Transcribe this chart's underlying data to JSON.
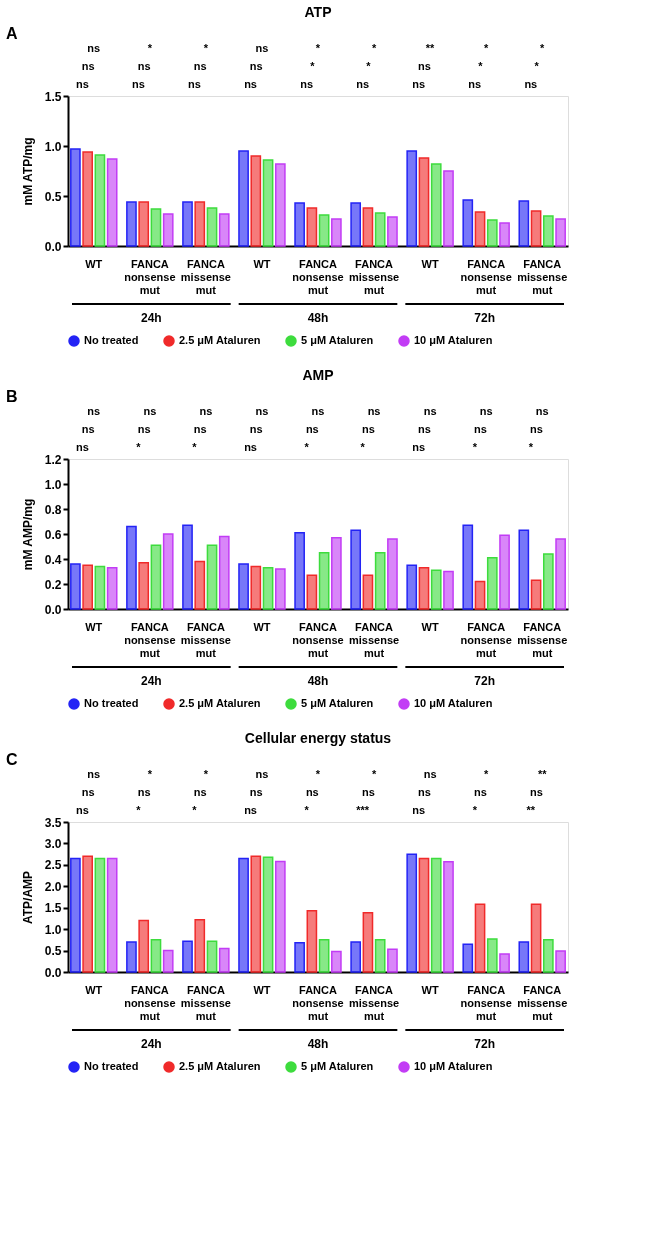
{
  "chart_data": [
    {
      "type": "bar",
      "title": "ATP",
      "ylabel": "mM ATP/mg",
      "categories": [
        "WT",
        "FANCA nonsense mut",
        "FANCA missense mut",
        "WT",
        "FANCA nonsense mut",
        "FANCA missense mut",
        "WT",
        "FANCA nonsense mut",
        "FANCA missense mut"
      ],
      "series": [
        {
          "name": "No treated",
          "color": "#2323f5",
          "values": [
            0.97,
            0.44,
            0.44,
            0.95,
            0.43,
            0.43,
            0.95,
            0.46,
            0.45
          ]
        },
        {
          "name": "2.5 μM Ataluren",
          "color": "#f02a2a",
          "values": [
            0.94,
            0.44,
            0.44,
            0.9,
            0.38,
            0.38,
            0.88,
            0.34,
            0.35
          ]
        },
        {
          "name": "5 μM Ataluren",
          "color": "#3ddc3d",
          "values": [
            0.91,
            0.37,
            0.38,
            0.86,
            0.31,
            0.33,
            0.82,
            0.26,
            0.3
          ]
        },
        {
          "name": "10 μM Ataluren",
          "color": "#c23cf5",
          "values": [
            0.87,
            0.32,
            0.32,
            0.82,
            0.27,
            0.29,
            0.75,
            0.23,
            0.27
          ]
        }
      ],
      "ylim": [
        0,
        1.5
      ],
      "yticks": [
        {
          "value": 0,
          "label": "0.0"
        },
        {
          "value": 0.5,
          "label": "0.5"
        },
        {
          "value": 1,
          "label": "1.0"
        },
        {
          "value": 1.5,
          "label": "1.5"
        }
      ],
      "grid": false,
      "legend": "bottom",
      "annotations": [
        "ns",
        "ns",
        "ns",
        "ns",
        "ns",
        "*",
        "ns",
        "ns",
        "*",
        "ns",
        "ns",
        "ns",
        "ns",
        "*",
        "*",
        "ns",
        "*",
        "*",
        "ns",
        "ns",
        "**",
        "ns",
        "*",
        "*",
        "ns",
        "*",
        "*",
        "24h",
        "48h",
        "72h",
        "A"
      ]
    },
    {
      "type": "bar",
      "title": "AMP",
      "ylabel": "mM AMP/mg",
      "categories": [
        "WT",
        "FANCA nonsense mut",
        "FANCA missense mut",
        "WT",
        "FANCA nonsense mut",
        "FANCA missense mut",
        "WT",
        "FANCA nonsense mut",
        "FANCA missense mut"
      ],
      "series": [
        {
          "name": "No treated",
          "color": "#2323f5",
          "values": [
            0.36,
            0.66,
            0.67,
            0.36,
            0.61,
            0.63,
            0.35,
            0.67,
            0.63
          ]
        },
        {
          "name": "2.5 μM Ataluren",
          "color": "#f02a2a",
          "values": [
            0.35,
            0.37,
            0.38,
            0.34,
            0.27,
            0.27,
            0.33,
            0.22,
            0.23
          ]
        },
        {
          "name": "5 μM Ataluren",
          "color": "#3ddc3d",
          "values": [
            0.34,
            0.51,
            0.51,
            0.33,
            0.45,
            0.45,
            0.31,
            0.41,
            0.44
          ]
        },
        {
          "name": "10 μM Ataluren",
          "color": "#c23cf5",
          "values": [
            0.33,
            0.6,
            0.58,
            0.32,
            0.57,
            0.56,
            0.3,
            0.59,
            0.56
          ]
        }
      ],
      "ylim": [
        0,
        1.2
      ],
      "yticks": [
        {
          "value": 0,
          "label": "0.0"
        },
        {
          "value": 0.2,
          "label": "0.2"
        },
        {
          "value": 0.4,
          "label": "0.4"
        },
        {
          "value": 0.6,
          "label": "0.6"
        },
        {
          "value": 0.8,
          "label": "0.8"
        },
        {
          "value": 1,
          "label": "1.0"
        },
        {
          "value": 1.2,
          "label": "1.2"
        }
      ],
      "grid": false,
      "legend": "bottom",
      "annotations": [
        "ns",
        "ns",
        "ns",
        "*",
        "ns",
        "ns",
        "*",
        "ns",
        "ns",
        "ns",
        "ns",
        "ns",
        "*",
        "ns",
        "ns",
        "*",
        "ns",
        "ns",
        "ns",
        "ns",
        "ns",
        "*",
        "ns",
        "ns",
        "*",
        "ns",
        "ns",
        "24h",
        "48h",
        "72h",
        "B"
      ]
    },
    {
      "type": "bar",
      "title": "Cellular energy status",
      "ylabel": "ATP/AMP",
      "categories": [
        "WT",
        "FANCA nonsense mut",
        "FANCA missense mut",
        "WT",
        "FANCA nonsense mut",
        "FANCA missense mut",
        "WT",
        "FANCA nonsense mut",
        "FANCA missense mut"
      ],
      "series": [
        {
          "name": "No treated",
          "color": "#2323f5",
          "values": [
            2.65,
            0.7,
            0.72,
            2.65,
            0.68,
            0.7,
            2.75,
            0.65,
            0.7
          ]
        },
        {
          "name": "2.5 μM Ataluren",
          "color": "#f02a2a",
          "values": [
            2.7,
            1.2,
            1.22,
            2.7,
            1.43,
            1.38,
            2.65,
            1.58,
            1.58
          ]
        },
        {
          "name": "5 μM Ataluren",
          "color": "#3ddc3d",
          "values": [
            2.65,
            0.75,
            0.72,
            2.68,
            0.75,
            0.75,
            2.65,
            0.77,
            0.75
          ]
        },
        {
          "name": "10 μM Ataluren",
          "color": "#c23cf5",
          "values": [
            2.65,
            0.5,
            0.55,
            2.58,
            0.48,
            0.53,
            2.57,
            0.42,
            0.49
          ]
        }
      ],
      "ylim": [
        0,
        3.5
      ],
      "yticks": [
        {
          "value": 0,
          "label": "0.0"
        },
        {
          "value": 0.5,
          "label": "0.5"
        },
        {
          "value": 1,
          "label": "1.0"
        },
        {
          "value": 1.5,
          "label": "1.5"
        },
        {
          "value": 2,
          "label": "2.0"
        },
        {
          "value": 2.5,
          "label": "2.5"
        },
        {
          "value": 3,
          "label": "3.0"
        },
        {
          "value": 3.5,
          "label": "3.5"
        }
      ],
      "grid": false,
      "legend": "bottom",
      "annotations": [
        "ns",
        "ns",
        "ns",
        "*",
        "ns",
        "*",
        "*",
        "ns",
        "*",
        "ns",
        "ns",
        "ns",
        "*",
        "ns",
        "*",
        "***",
        "ns",
        "*",
        "ns",
        "ns",
        "ns",
        "*",
        "ns",
        "*",
        "**",
        "ns",
        "**",
        "24h",
        "48h",
        "72h",
        "C"
      ]
    }
  ]
}
